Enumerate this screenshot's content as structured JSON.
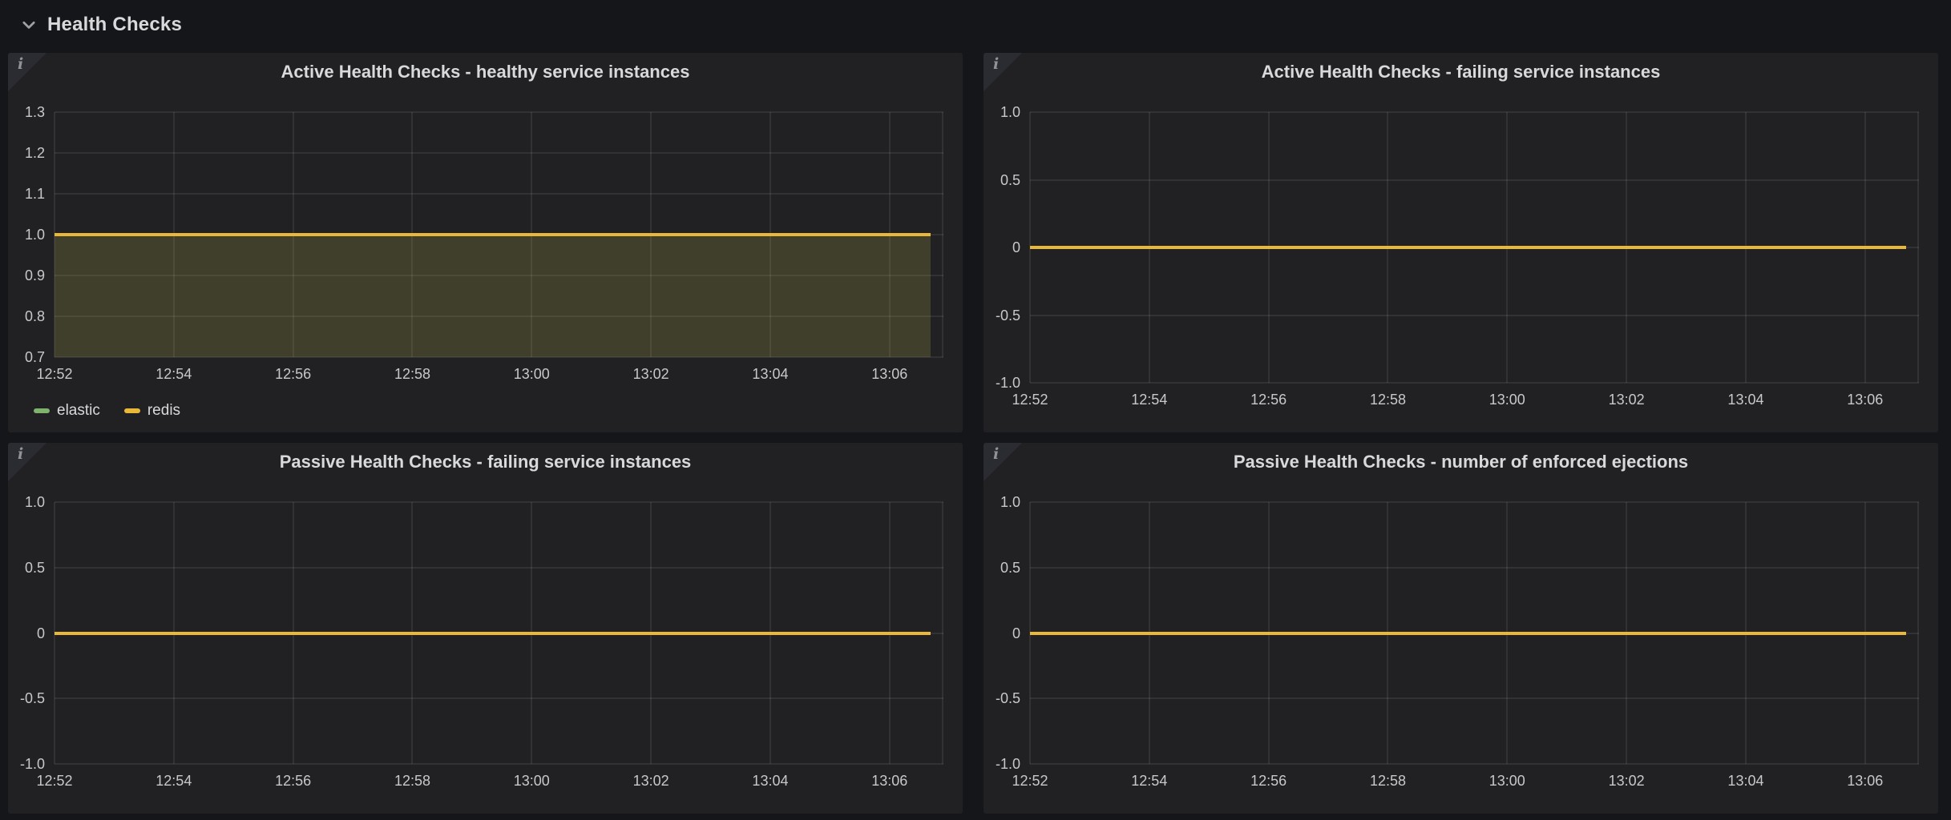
{
  "colors": {
    "page_bg": "#151619",
    "panel_bg": "#212124",
    "grid_line": "rgba(255,255,255,0.08)",
    "title_text": "#d8d9da",
    "axis_text": "#c7c8c9",
    "accent_yellow": "#EAB839",
    "accent_green": "#7EB26D"
  },
  "header": {
    "title": "Health Checks",
    "collapse_icon": "chevron-down-icon"
  },
  "panels": [
    {
      "title": "Active Health Checks - healthy service instances",
      "info_icon": "i",
      "y_tick_labels": [
        "1.3",
        "1.2",
        "1.1",
        "1.0",
        "0.9",
        "0.8",
        "0.7"
      ],
      "y_ticks": [
        1.3,
        1.2,
        1.1,
        1.0,
        0.9,
        0.8,
        0.7
      ],
      "x_tick_labels": [
        "12:52",
        "12:54",
        "12:56",
        "12:58",
        "13:00",
        "13:02",
        "13:04",
        "13:06"
      ],
      "line_value": 1.0,
      "line_color": "#EAB839",
      "fill_colors": [
        "rgba(126,178,109,0.10)",
        "rgba(234,184,57,0.12)"
      ],
      "legend_items": [
        {
          "label": "elastic",
          "color": "#7EB26D"
        },
        {
          "label": "redis",
          "color": "#EAB839"
        }
      ]
    },
    {
      "title": "Active Health Checks - failing service instances",
      "info_icon": "i",
      "y_tick_labels": [
        "1.0",
        "0.5",
        "0",
        "-0.5",
        "-1.0"
      ],
      "y_ticks": [
        1.0,
        0.5,
        0,
        -0.5,
        -1.0
      ],
      "x_tick_labels": [
        "12:52",
        "12:54",
        "12:56",
        "12:58",
        "13:00",
        "13:02",
        "13:04",
        "13:06"
      ],
      "line_value": 0,
      "line_color": "#EAB839",
      "fill_colors": [],
      "legend_items": []
    },
    {
      "title": "Passive Health Checks - failing service instances",
      "info_icon": "i",
      "y_tick_labels": [
        "1.0",
        "0.5",
        "0",
        "-0.5",
        "-1.0"
      ],
      "y_ticks": [
        1.0,
        0.5,
        0,
        -0.5,
        -1.0
      ],
      "x_tick_labels": [
        "12:52",
        "12:54",
        "12:56",
        "12:58",
        "13:00",
        "13:02",
        "13:04",
        "13:06"
      ],
      "line_value": 0,
      "line_color": "#EAB839",
      "fill_colors": [],
      "legend_items": []
    },
    {
      "title": "Passive Health Checks - number of enforced ejections",
      "info_icon": "i",
      "y_tick_labels": [
        "1.0",
        "0.5",
        "0",
        "-0.5",
        "-1.0"
      ],
      "y_ticks": [
        1.0,
        0.5,
        0,
        -0.5,
        -1.0
      ],
      "x_tick_labels": [
        "12:52",
        "12:54",
        "12:56",
        "12:58",
        "13:00",
        "13:02",
        "13:04",
        "13:06"
      ],
      "line_value": 0,
      "line_color": "#EAB839",
      "fill_colors": [],
      "legend_items": []
    }
  ],
  "chart_data": [
    {
      "type": "line",
      "title": "Active Health Checks - healthy service instances",
      "x": [
        "12:52",
        "12:54",
        "12:56",
        "12:58",
        "13:00",
        "13:02",
        "13:04",
        "13:06"
      ],
      "series": [
        {
          "name": "elastic",
          "color": "#7EB26D",
          "values": [
            1,
            1,
            1,
            1,
            1,
            1,
            1,
            1
          ]
        },
        {
          "name": "redis",
          "color": "#EAB839",
          "values": [
            1,
            1,
            1,
            1,
            1,
            1,
            1,
            1
          ]
        }
      ],
      "ylim": [
        0.7,
        1.3
      ],
      "xlabel": "",
      "ylabel": "",
      "grid": true,
      "fill": true,
      "legend_position": "bottom-left"
    },
    {
      "type": "line",
      "title": "Active Health Checks - failing service instances",
      "x": [
        "12:52",
        "12:54",
        "12:56",
        "12:58",
        "13:00",
        "13:02",
        "13:04",
        "13:06"
      ],
      "series": [
        {
          "name": "",
          "color": "#EAB839",
          "values": [
            0,
            0,
            0,
            0,
            0,
            0,
            0,
            0
          ]
        }
      ],
      "ylim": [
        -1.0,
        1.0
      ],
      "xlabel": "",
      "ylabel": "",
      "grid": true,
      "fill": false,
      "legend_position": "none"
    },
    {
      "type": "line",
      "title": "Passive Health Checks - failing service instances",
      "x": [
        "12:52",
        "12:54",
        "12:56",
        "12:58",
        "13:00",
        "13:02",
        "13:04",
        "13:06"
      ],
      "series": [
        {
          "name": "",
          "color": "#EAB839",
          "values": [
            0,
            0,
            0,
            0,
            0,
            0,
            0,
            0
          ]
        }
      ],
      "ylim": [
        -1.0,
        1.0
      ],
      "xlabel": "",
      "ylabel": "",
      "grid": true,
      "fill": false,
      "legend_position": "none"
    },
    {
      "type": "line",
      "title": "Passive Health Checks - number of enforced ejections",
      "x": [
        "12:52",
        "12:54",
        "12:56",
        "12:58",
        "13:00",
        "13:02",
        "13:04",
        "13:06"
      ],
      "series": [
        {
          "name": "",
          "color": "#EAB839",
          "values": [
            0,
            0,
            0,
            0,
            0,
            0,
            0,
            0
          ]
        }
      ],
      "ylim": [
        -1.0,
        1.0
      ],
      "xlabel": "",
      "ylabel": "",
      "grid": true,
      "fill": false,
      "legend_position": "none"
    }
  ]
}
